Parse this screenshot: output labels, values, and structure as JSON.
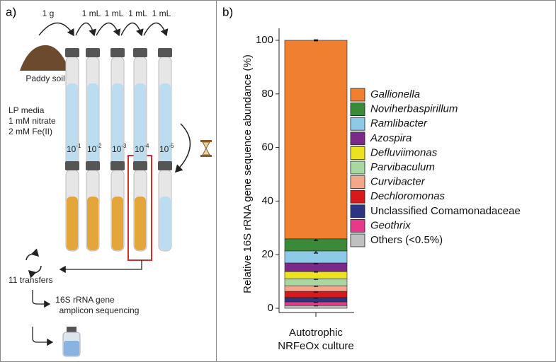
{
  "panel_a": {
    "label": "a)",
    "transfer_volumes": [
      "1 g",
      "1 mL",
      "1 mL",
      "1 mL",
      "1 mL"
    ],
    "soil_label": "Paddy soil",
    "media": [
      "LP media",
      "1 mM nitrate",
      "2 mM Fe(II)"
    ],
    "dilutions": [
      {
        "base": "10",
        "exponent": "-1"
      },
      {
        "base": "10",
        "exponent": "-2"
      },
      {
        "base": "10",
        "exponent": "-3"
      },
      {
        "base": "10",
        "exponent": "-4"
      },
      {
        "base": "10",
        "exponent": "-5"
      }
    ],
    "transfers": "11 transfers",
    "sequencing": [
      "16S rRNA gene",
      "amplicon sequencing"
    ]
  },
  "chart_data": {
    "type": "stacked_bar",
    "panel_label": "b)",
    "ylabel": "Relative 16S rRNA gene sequence abundance (%)",
    "categories": [
      "Autotrophic NRFeOx culture"
    ],
    "ylim": [
      0,
      100
    ],
    "yticks": [
      0,
      20,
      40,
      60,
      80,
      100
    ],
    "legend": "right",
    "series": [
      {
        "name": "Gallionella",
        "color": "#f08030",
        "italic": true,
        "values": [
          74.1
        ],
        "errors": [
          0.2
        ]
      },
      {
        "name": "Noviherbaspirillum",
        "color": "#3a8a3a",
        "italic": true,
        "values": [
          4.5
        ],
        "errors": [
          0.6
        ]
      },
      {
        "name": "Ramlibacter",
        "color": "#8ecae8",
        "italic": true,
        "values": [
          4.5
        ],
        "errors": [
          0.8
        ]
      },
      {
        "name": "Azospira",
        "color": "#7b2a8a",
        "italic": true,
        "values": [
          3.2
        ],
        "errors": [
          0.3
        ]
      },
      {
        "name": "Defluviimonas",
        "color": "#ece21f",
        "italic": true,
        "values": [
          2.7
        ],
        "errors": [
          0.2
        ]
      },
      {
        "name": "Parvibaculum",
        "color": "#a8d8a0",
        "italic": true,
        "values": [
          2.6
        ],
        "errors": [
          0.2
        ]
      },
      {
        "name": "Curvibacter",
        "color": "#f4a68a",
        "italic": true,
        "values": [
          2.1
        ],
        "errors": [
          0.2
        ]
      },
      {
        "name": "Dechloromonas",
        "color": "#d7191c",
        "italic": true,
        "values": [
          2.3
        ],
        "errors": [
          0.3
        ]
      },
      {
        "name": "Unclassified Comamonadaceae",
        "color": "#2b3580",
        "italic": false,
        "values": [
          1.6
        ],
        "errors": [
          0.2
        ]
      },
      {
        "name": "Geothrix",
        "color": "#e8388a",
        "italic": true,
        "values": [
          1.4
        ],
        "errors": [
          0.2
        ]
      },
      {
        "name": "Others (<0.5%)",
        "color": "#c0c0c0",
        "italic": false,
        "values": [
          1.0
        ],
        "errors": [
          0.1
        ]
      }
    ]
  }
}
